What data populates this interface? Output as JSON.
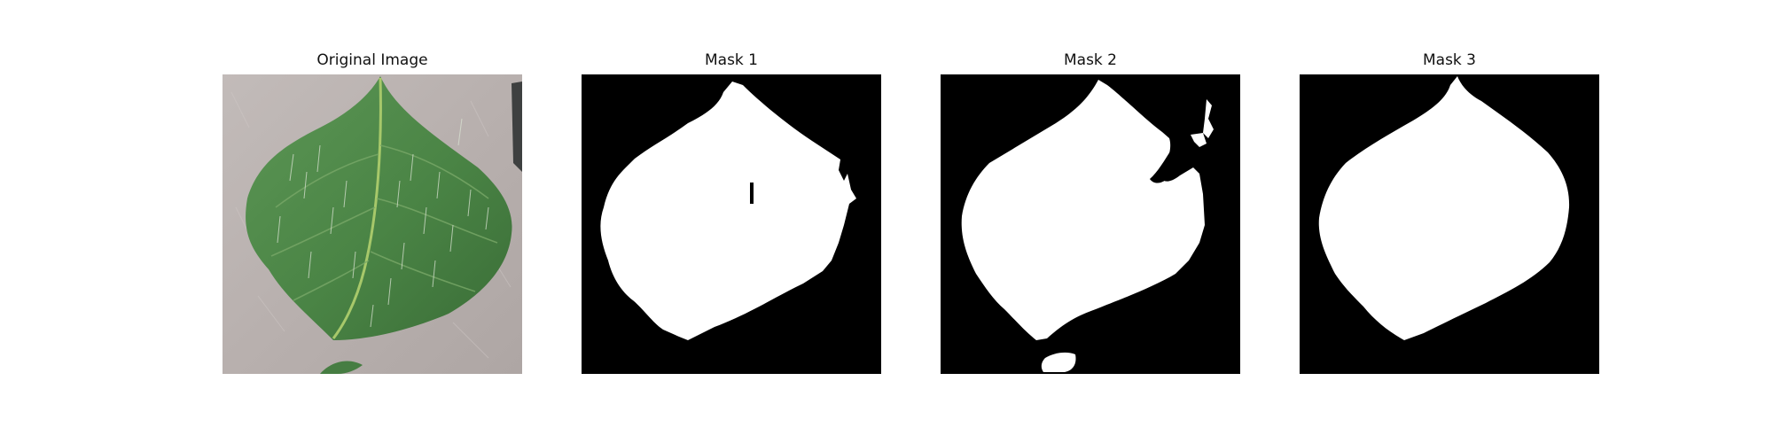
{
  "figure": {
    "panels": [
      {
        "title": "Original Image"
      },
      {
        "title": "Mask 1"
      },
      {
        "title": "Mask 2"
      },
      {
        "title": "Mask 3"
      }
    ]
  },
  "colors": {
    "background": "#ffffff",
    "mask_foreground": "#ffffff",
    "mask_background": "#000000",
    "leaf_green": "#4f8a4a",
    "leaf_dark": "#3b6f38",
    "fabric_gray": "#b9b1b0"
  }
}
